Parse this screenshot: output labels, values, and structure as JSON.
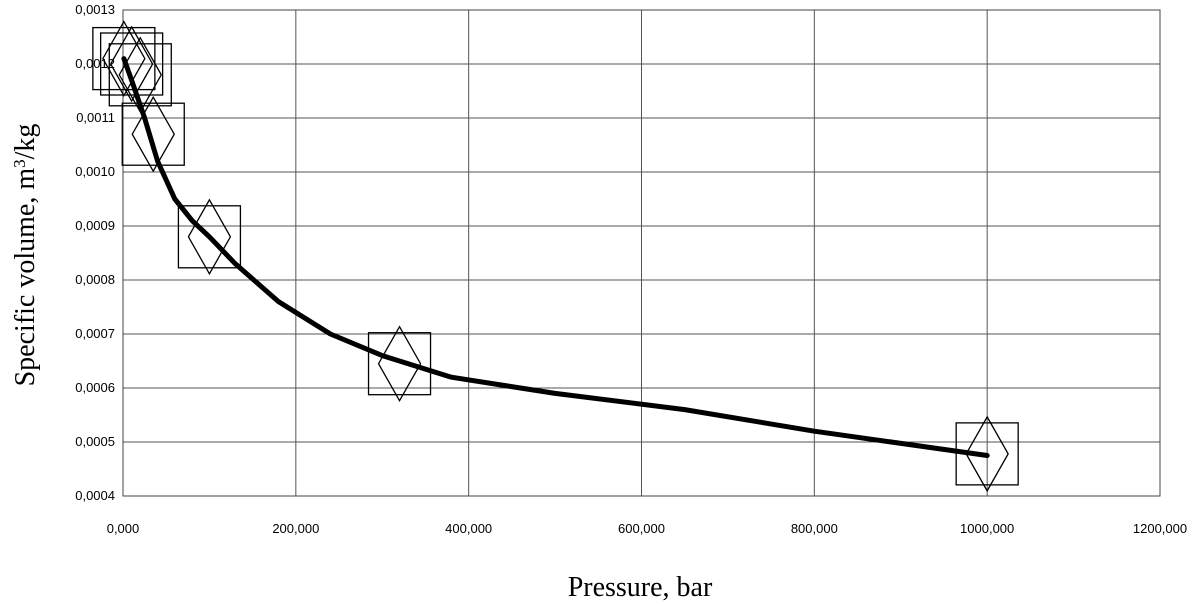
{
  "chart_data": {
    "type": "line",
    "xlabel": "Pressure, bar",
    "ylabel_parts": {
      "before": "Specific volume, m",
      "superscript": "3",
      "after": "/kg"
    },
    "xlim": [
      0,
      1200000
    ],
    "ylim": [
      0.0004,
      0.0013
    ],
    "x_ticks": [
      0,
      200000,
      400000,
      600000,
      800000,
      1000000,
      1200000
    ],
    "x_tick_labels": [
      "0,000",
      "200,000",
      "400,000",
      "600,000",
      "800,000",
      "1000,000",
      "1200,000"
    ],
    "y_ticks": [
      0.0004,
      0.0005,
      0.0006,
      0.0007,
      0.0008,
      0.0009,
      0.001,
      0.0011,
      0.0012,
      0.0013
    ],
    "y_tick_labels": [
      "0,0004",
      "0,0005",
      "0,0006",
      "0,0007",
      "0,0008",
      "0,0009",
      "0,0010",
      "0,0011",
      "0,0012",
      "0,0013"
    ],
    "grid": true,
    "series": [
      {
        "kind": "fitted-curve",
        "color": "#000000",
        "x": [
          1000,
          10000,
          25000,
          40000,
          60000,
          80000,
          100000,
          130000,
          180000,
          240000,
          300000,
          380000,
          500000,
          650000,
          800000,
          1000000
        ],
        "y": [
          0.00121,
          0.00117,
          0.0011,
          0.00102,
          0.00095,
          0.00091,
          0.00088,
          0.00083,
          0.00076,
          0.0007,
          0.00066,
          0.00062,
          0.00059,
          0.00056,
          0.00052,
          0.000475
        ]
      },
      {
        "kind": "markers-square",
        "color": "#000000",
        "x": [
          1000,
          10000,
          20000,
          35000,
          100000,
          320000,
          1000000
        ],
        "y": [
          0.00121,
          0.0012,
          0.00118,
          0.00107,
          0.00088,
          0.000645,
          0.000478
        ]
      },
      {
        "kind": "markers-diamond",
        "color": "#000000",
        "x": [
          1000,
          10000,
          20000,
          35000,
          100000,
          320000,
          1000000
        ],
        "y": [
          0.00121,
          0.0012,
          0.00118,
          0.00107,
          0.00088,
          0.000645,
          0.000478
        ]
      }
    ]
  }
}
